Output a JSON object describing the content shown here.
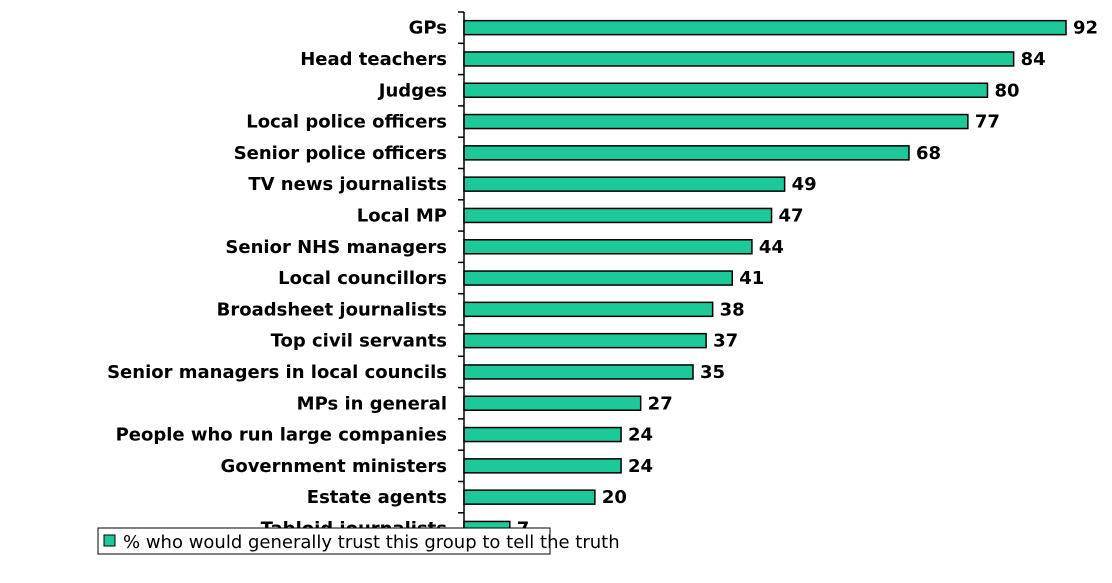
{
  "chart_data": {
    "type": "bar",
    "orientation": "horizontal",
    "categories": [
      "GPs",
      "Head teachers",
      "Judges",
      "Local police officers",
      "Senior police officers",
      "TV news journalists",
      "Local MP",
      "Senior NHS managers",
      "Local councillors",
      "Broadsheet journalists",
      "Top civil servants",
      "Senior managers in local councils",
      "MPs in general",
      "People who run large companies",
      "Government ministers",
      "Estate agents",
      "Tabloid journalists"
    ],
    "series": [
      {
        "name": "% who would generally trust this group to tell the truth",
        "color": "#1ec999",
        "values": [
          92,
          84,
          80,
          77,
          68,
          49,
          47,
          44,
          41,
          38,
          37,
          35,
          27,
          24,
          24,
          20,
          7
        ]
      }
    ],
    "xlim": [
      0,
      92
    ],
    "grid": false,
    "legend": "bottom-left",
    "title": "",
    "xlabel": "",
    "ylabel": ""
  }
}
